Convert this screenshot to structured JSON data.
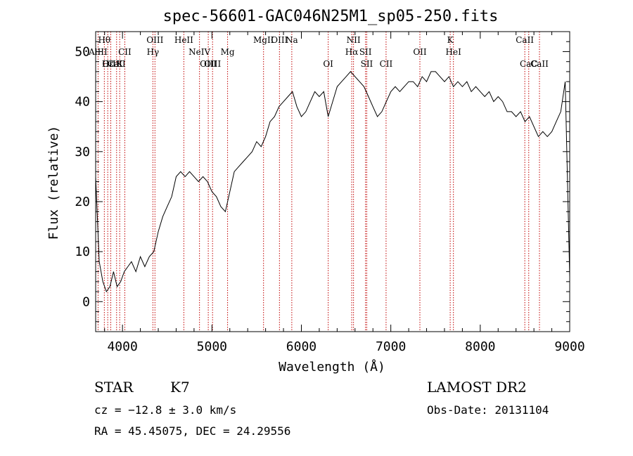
{
  "chart_data": {
    "type": "line",
    "title": "spec-56601-GAC046N25M1_sp05-250.fits",
    "xlabel": "Wavelength (Å)",
    "ylabel": "Flux (relative)",
    "xlim": [
      3700,
      9000
    ],
    "ylim": [
      -6,
      54
    ],
    "x_ticks": [
      4000,
      5000,
      6000,
      7000,
      8000,
      9000
    ],
    "y_ticks": [
      0,
      10,
      20,
      30,
      40,
      50
    ],
    "grid": false,
    "line_color": "#000000",
    "marker_color": "#c00000",
    "series": [
      {
        "x": [
          3700,
          3740,
          3780,
          3820,
          3860,
          3900,
          3940,
          3980,
          4020,
          4060,
          4100,
          4150,
          4200,
          4250,
          4300,
          4350,
          4400,
          4450,
          4500,
          4550,
          4600,
          4650,
          4700,
          4750,
          4800,
          4850,
          4900,
          4950,
          5000,
          5050,
          5100,
          5150,
          5200,
          5250,
          5300,
          5350,
          5400,
          5450,
          5500,
          5550,
          5600,
          5650,
          5700,
          5750,
          5800,
          5850,
          5900,
          5950,
          6000,
          6050,
          6100,
          6150,
          6200,
          6250,
          6300,
          6350,
          6400,
          6450,
          6500,
          6550,
          6600,
          6650,
          6700,
          6750,
          6800,
          6850,
          6900,
          6950,
          7000,
          7050,
          7100,
          7150,
          7200,
          7250,
          7300,
          7350,
          7400,
          7450,
          7500,
          7550,
          7600,
          7650,
          7700,
          7750,
          7800,
          7850,
          7900,
          7950,
          8000,
          8050,
          8100,
          8150,
          8200,
          8250,
          8300,
          8350,
          8400,
          8450,
          8500,
          8550,
          8600,
          8650,
          8700,
          8750,
          8800,
          8850,
          8900,
          8950,
          9000
        ],
        "y": [
          25,
          8,
          4,
          2,
          3,
          6,
          3,
          4,
          6,
          7,
          8,
          6,
          9,
          7,
          9,
          10,
          14,
          17,
          19,
          21,
          25,
          26,
          25,
          26,
          25,
          24,
          25,
          24,
          22,
          21,
          19,
          18,
          22,
          26,
          27,
          28,
          29,
          30,
          32,
          31,
          33,
          36,
          37,
          39,
          40,
          41,
          42,
          39,
          37,
          38,
          40,
          42,
          41,
          42,
          37,
          40,
          43,
          44,
          45,
          46,
          45,
          44,
          43,
          41,
          39,
          37,
          38,
          40,
          42,
          43,
          42,
          43,
          44,
          44,
          43,
          45,
          44,
          46,
          46,
          45,
          44,
          45,
          43,
          44,
          43,
          44,
          42,
          43,
          42,
          41,
          42,
          40,
          41,
          40,
          38,
          38,
          37,
          38,
          36,
          37,
          35,
          33,
          34,
          33,
          34,
          36,
          38,
          44,
          5
        ]
      }
    ],
    "lines": [
      {
        "wl": 3797,
        "label": "Hθ",
        "row": 0
      },
      {
        "wl": 3727,
        "label": "AlIII",
        "row": 1
      },
      {
        "wl": 3835,
        "label": "Hε",
        "row": 2
      },
      {
        "wl": 3869,
        "label": "OIII",
        "row": 2
      },
      {
        "wl": 3934,
        "label": "CaII",
        "row": 2
      },
      {
        "wl": 3969,
        "label": "K",
        "row": 2
      },
      {
        "wl": 4026,
        "label": "CII",
        "row": 1
      },
      {
        "wl": 4363,
        "label": "OIII",
        "row": 0
      },
      {
        "wl": 4340,
        "label": "Hγ",
        "row": 1
      },
      {
        "wl": 4686,
        "label": "HeII",
        "row": 0
      },
      {
        "wl": 4861,
        "label": "NeIV",
        "row": 1
      },
      {
        "wl": 4959,
        "label": "OIII",
        "row": 2
      },
      {
        "wl": 5007,
        "label": "OIII",
        "row": 2
      },
      {
        "wl": 5175,
        "label": "Mg",
        "row": 1
      },
      {
        "wl": 5577,
        "label": "MgII",
        "row": 0
      },
      {
        "wl": 5755,
        "label": "OIII",
        "row": 0
      },
      {
        "wl": 5893,
        "label": "Na",
        "row": 0
      },
      {
        "wl": 6300,
        "label": "OI",
        "row": 2
      },
      {
        "wl": 6583,
        "label": "NII",
        "row": 0
      },
      {
        "wl": 6563,
        "label": "Hα",
        "row": 1
      },
      {
        "wl": 6717,
        "label": "SII",
        "row": 1
      },
      {
        "wl": 6731,
        "label": "SII",
        "row": 2
      },
      {
        "wl": 6947,
        "label": "CII",
        "row": 2
      },
      {
        "wl": 7325,
        "label": "OII",
        "row": 1
      },
      {
        "wl": 7664,
        "label": "K",
        "row": 0
      },
      {
        "wl": 7700,
        "label": "HeI",
        "row": 1
      },
      {
        "wl": 8498,
        "label": "CaII",
        "row": 0
      },
      {
        "wl": 8542,
        "label": "CaC",
        "row": 2
      },
      {
        "wl": 8662,
        "label": "CaII",
        "row": 2
      }
    ]
  },
  "info": {
    "object_class": "STAR",
    "subclass": "K7",
    "redshift": "cz = −12.8 ± 3.0 km/s",
    "coords": "RA =  45.45075, DEC =  24.29556",
    "survey": "LAMOST DR2",
    "obs_date": "Obs-Date: 20131104"
  }
}
